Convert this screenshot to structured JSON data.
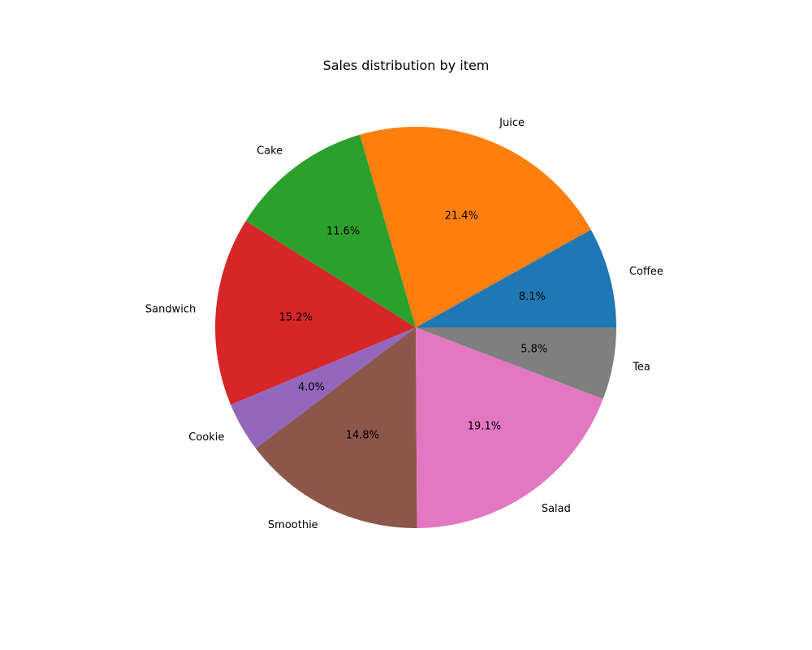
{
  "chart_data": {
    "type": "pie",
    "title": "Sales distribution by item",
    "categories": [
      "Coffee",
      "Juice",
      "Cake",
      "Sandwich",
      "Cookie",
      "Smoothie",
      "Salad",
      "Tea"
    ],
    "values": [
      8.1,
      21.4,
      11.6,
      15.2,
      4.0,
      14.8,
      19.1,
      5.8
    ],
    "percent_labels": [
      "8.1%",
      "21.4%",
      "11.6%",
      "15.2%",
      "4.0%",
      "14.8%",
      "19.1%",
      "5.8%"
    ],
    "colors": [
      "#1f77b4",
      "#ff7f0e",
      "#2ca02c",
      "#d62728",
      "#9467bd",
      "#8c564b",
      "#e377c2",
      "#7f7f7f"
    ],
    "start_angle_deg": 0,
    "direction": "counterclockwise"
  }
}
